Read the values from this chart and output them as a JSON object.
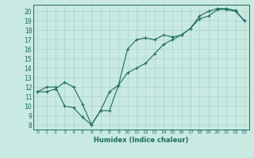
{
  "xlabel": "Humidex (Indice chaleur)",
  "background_color": "#c8eae2",
  "line_color": "#1a6b5a",
  "grid_color": "#a8d4cc",
  "xlim": [
    -0.5,
    23.5
  ],
  "ylim": [
    7.5,
    20.7
  ],
  "xticks": [
    0,
    1,
    2,
    3,
    4,
    5,
    6,
    7,
    8,
    9,
    10,
    11,
    12,
    13,
    14,
    15,
    16,
    17,
    18,
    19,
    20,
    21,
    22,
    23
  ],
  "yticks": [
    8,
    9,
    10,
    11,
    12,
    13,
    14,
    15,
    16,
    17,
    18,
    19,
    20
  ],
  "series1_x": [
    0,
    1,
    2,
    3,
    4,
    5,
    6,
    7,
    8,
    9,
    10,
    11,
    12,
    13,
    14,
    15,
    16,
    17,
    18,
    19,
    20,
    21,
    22,
    23
  ],
  "series1_y": [
    11.5,
    12.0,
    12.0,
    10.0,
    9.8,
    8.8,
    8.0,
    9.5,
    9.5,
    12.2,
    16.0,
    17.0,
    17.2,
    17.0,
    17.5,
    17.3,
    17.5,
    18.2,
    19.5,
    20.0,
    20.3,
    20.3,
    20.1,
    19.0
  ],
  "series2_x": [
    0,
    1,
    2,
    3,
    4,
    5,
    6,
    7,
    8,
    9,
    10,
    11,
    12,
    13,
    14,
    15,
    16,
    17,
    18,
    19,
    20,
    21,
    22,
    23
  ],
  "series2_y": [
    11.5,
    11.5,
    11.8,
    12.5,
    12.0,
    10.2,
    8.0,
    9.5,
    11.5,
    12.2,
    13.5,
    14.0,
    14.5,
    15.5,
    16.5,
    17.0,
    17.5,
    18.2,
    19.2,
    19.5,
    20.2,
    20.2,
    20.0,
    19.0
  ]
}
